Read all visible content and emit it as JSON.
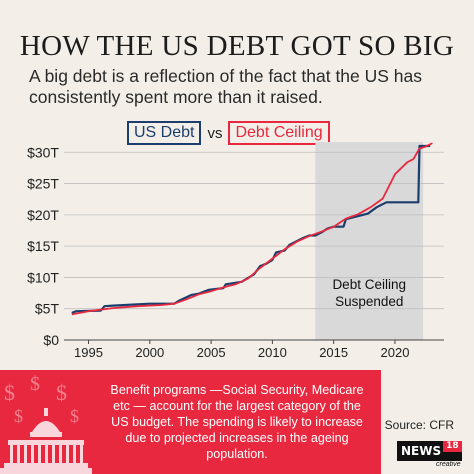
{
  "header": {
    "title": "HOW THE US DEBT GOT SO BIG",
    "subtitle": "A big debt is a reflection of the fact that the US has consistently spent more than it raised."
  },
  "colors": {
    "debt": "#1b3e6e",
    "ceiling": "#e8283f",
    "shade": "#d9d9d9",
    "background": "#f3efe8"
  },
  "chart_data": {
    "type": "line",
    "title": "HOW THE US DEBT GOT SO BIG",
    "xlabel": "",
    "ylabel": "",
    "xlim": [
      1993,
      2024
    ],
    "ylim": [
      0,
      31
    ],
    "grid": true,
    "legend": {
      "position": "top",
      "items": [
        "US Debt",
        "vs",
        "Debt Ceiling"
      ]
    },
    "x_ticks": [
      1995,
      2000,
      2005,
      2010,
      2015,
      2020
    ],
    "y_ticks": [
      {
        "value": 0,
        "label": "$0"
      },
      {
        "value": 5,
        "label": "$5T"
      },
      {
        "value": 10,
        "label": "$10T"
      },
      {
        "value": 15,
        "label": "$15T"
      },
      {
        "value": 20,
        "label": "$20T"
      },
      {
        "value": 25,
        "label": "$25T"
      },
      {
        "value": 30,
        "label": "$30T"
      }
    ],
    "shaded_region": {
      "x": [
        2013.5,
        2022.3
      ],
      "label": "Debt Ceiling Suspended"
    },
    "series": [
      {
        "name": "US Debt",
        "color": "#1b3e6e",
        "points": [
          [
            1993.7,
            4.4
          ],
          [
            1994.0,
            4.6
          ],
          [
            1996.0,
            4.7
          ],
          [
            1996.3,
            5.4
          ],
          [
            1997.0,
            5.5
          ],
          [
            1998.0,
            5.6
          ],
          [
            2000.0,
            5.8
          ],
          [
            2002.0,
            5.8
          ],
          [
            2002.4,
            6.3
          ],
          [
            2003.4,
            7.2
          ],
          [
            2004.0,
            7.4
          ],
          [
            2004.8,
            8.0
          ],
          [
            2006.0,
            8.3
          ],
          [
            2006.2,
            8.9
          ],
          [
            2007.5,
            9.3
          ],
          [
            2008.5,
            10.5
          ],
          [
            2009.0,
            11.8
          ],
          [
            2009.5,
            12.2
          ],
          [
            2010.0,
            12.8
          ],
          [
            2010.3,
            14.0
          ],
          [
            2011.0,
            14.3
          ],
          [
            2011.4,
            15.2
          ],
          [
            2012.5,
            16.3
          ],
          [
            2013.0,
            16.7
          ],
          [
            2013.5,
            16.7
          ],
          [
            2014.0,
            17.2
          ],
          [
            2014.5,
            17.8
          ],
          [
            2015.0,
            18.1
          ],
          [
            2015.8,
            18.1
          ],
          [
            2016.0,
            19.3
          ],
          [
            2017.0,
            19.8
          ],
          [
            2017.8,
            20.2
          ],
          [
            2018.0,
            20.5
          ],
          [
            2018.5,
            21.2
          ],
          [
            2019.3,
            22.0
          ],
          [
            2021.9,
            22.0
          ],
          [
            2022.0,
            31.0
          ],
          [
            2022.8,
            31.0
          ]
        ]
      },
      {
        "name": "Debt Ceiling",
        "color": "#e8283f",
        "points": [
          [
            1993.7,
            4.1
          ],
          [
            1995.0,
            4.6
          ],
          [
            1997.0,
            5.1
          ],
          [
            1999.0,
            5.4
          ],
          [
            2001.0,
            5.6
          ],
          [
            2002.0,
            5.8
          ],
          [
            2003.0,
            6.5
          ],
          [
            2004.0,
            7.3
          ],
          [
            2005.0,
            7.8
          ],
          [
            2006.0,
            8.4
          ],
          [
            2007.0,
            8.9
          ],
          [
            2008.0,
            9.8
          ],
          [
            2009.0,
            11.5
          ],
          [
            2010.0,
            13.0
          ],
          [
            2011.0,
            14.5
          ],
          [
            2012.0,
            15.7
          ],
          [
            2013.0,
            16.6
          ],
          [
            2014.0,
            17.3
          ],
          [
            2015.0,
            18.1
          ],
          [
            2016.0,
            19.4
          ],
          [
            2017.0,
            20.1
          ],
          [
            2018.0,
            21.2
          ],
          [
            2019.0,
            22.6
          ],
          [
            2020.0,
            26.5
          ],
          [
            2021.0,
            28.4
          ],
          [
            2021.5,
            28.9
          ],
          [
            2022.0,
            30.6
          ],
          [
            2022.5,
            30.9
          ],
          [
            2023.0,
            31.4
          ]
        ]
      }
    ]
  },
  "footer": {
    "note": "Benefit programs —Social Security, Medicare etc — account for the largest category of the US budget. The spending is likely to increase due to projected increases in the ageing population.",
    "source": "Source: CFR",
    "brand_word": "NEWS",
    "brand_num": "18",
    "brand_sub": "creative"
  }
}
